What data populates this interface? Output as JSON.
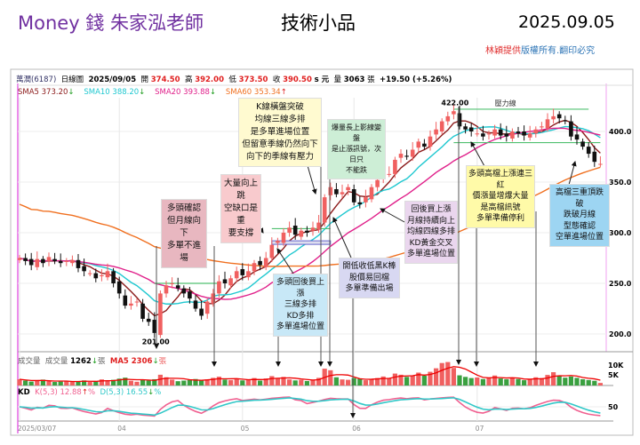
{
  "title": {
    "brand": "Money 錢  朱家泓老師",
    "subject": "技術小品",
    "date": "2025.09.05",
    "copyright_red": "林穎提供",
    "copyright_blue": "版權所有.翻印必究"
  },
  "stock_header": {
    "name": "萬潤(6187)",
    "period": "日線圖",
    "date": "2025/09/05",
    "open_label": "開",
    "open": "374.50",
    "high_label": "高",
    "high": "392.00",
    "low_label": "低",
    "low": "373.50",
    "close_label": "收",
    "close": "390.50",
    "unit": "s 元",
    "vol_label": "量",
    "volume": "3063",
    "vol_unit": "張",
    "change": "+19.50 (+5.26%)"
  },
  "ma_legend": [
    {
      "label": "SMA5 373.20",
      "color": "#8b1a1a",
      "dir": "↓",
      "dircolor": "#1a9a1a"
    },
    {
      "label": "SMA10 388.20",
      "color": "#20c8d0",
      "dir": "↓",
      "dircolor": "#1a9a1a"
    },
    {
      "label": "SMA20 393.88",
      "color": "#e0208a",
      "dir": "↓",
      "dircolor": "#1a9a1a"
    },
    {
      "label": "SMA60 353.34",
      "color": "#f07020",
      "dir": "↑",
      "dircolor": "#e02020"
    }
  ],
  "volume_legend": {
    "name": "成交量",
    "label": "成交量",
    "value": "1262",
    "dir": "↓",
    "unit": "張",
    "ma": "MA5 2306",
    "ma_dir": "↓",
    "ma_unit": "張"
  },
  "kd_legend": {
    "name": "KD",
    "k": "K(5,3) 12.88",
    "k_dir": "↑",
    "d": "D(5,3) 16.55",
    "d_dir": "↓",
    "unit": "%"
  },
  "annotations": [
    {
      "text": "多頭確認\n但月線向下\n多單不進場",
      "bg": "#e8b7c0"
    },
    {
      "text": "大量向上跳\n空缺口是重\n要支撐",
      "bg": "#f8cacd"
    },
    {
      "text": "K線橫盤突破\n均線三線多排\n是多單進場位置\n但留意季線仍然向下\n向下的季線有壓力",
      "bg": "#fffad0"
    },
    {
      "text": "爆量長上影線變盤\n是止漲訊號，次日只\n不能跌",
      "bg": "#cdeed6"
    },
    {
      "text": "多頭回後買上漲\n三線多排\nKD多排\n多單進場位置",
      "bg": "#c8e8f7"
    },
    {
      "text": "開低收低黑K棒\n股價易回檔\n多單準備出場",
      "bg": "#d8d8f2"
    },
    {
      "text": "回後買上漲\n月線持續向上\n均線四線多排\nKD黃金交叉\n多單進場位置",
      "bg": "#ead6ee"
    },
    {
      "text": "多頭高檔上漲連三紅\n價漲量增爆大量\n是高檔訊號\n多單準備停利",
      "bg": "#fffaa8"
    },
    {
      "text": "高檔三重頂跌破\n跌破月線\n型態確認\n空單進場位置",
      "bg": "#9dd5f2"
    }
  ],
  "chart_data": {
    "type": "candlestick",
    "title": "萬潤(6187) 日線圖",
    "x_ticks": [
      {
        "label": "2025/03/07",
        "index": 0
      },
      {
        "label": "04",
        "index": 17
      },
      {
        "label": "05",
        "index": 38
      },
      {
        "label": "06",
        "index": 57
      },
      {
        "label": "07",
        "index": 78
      }
    ],
    "y_ticks": [
      200.0,
      250.0,
      300.0,
      350.0,
      400.0
    ],
    "ylim": [
      180,
      435
    ],
    "closes": [
      275,
      272,
      268,
      274,
      270,
      276,
      272,
      270,
      272,
      273,
      265,
      262,
      260,
      255,
      258,
      262,
      250,
      240,
      228,
      230,
      232,
      215,
      212,
      201,
      240,
      248,
      250,
      245,
      240,
      235,
      225,
      218,
      232,
      240,
      252,
      250,
      255,
      262,
      258,
      262,
      270,
      268,
      275,
      288,
      292,
      300,
      305,
      298,
      302,
      300,
      305,
      310,
      335,
      345,
      338,
      340,
      345,
      330,
      328,
      335,
      345,
      352,
      360,
      358,
      372,
      378,
      375,
      382,
      390,
      385,
      395,
      402,
      410,
      415,
      420,
      405,
      402,
      400,
      398,
      395,
      398,
      402,
      396,
      395,
      400,
      398,
      396,
      398,
      402,
      405,
      412,
      415,
      413,
      410,
      395,
      392,
      385,
      378,
      370,
      368
    ],
    "volumes_k": [
      3.2,
      2.5,
      2.0,
      2.4,
      3.0,
      2.2,
      1.8,
      2.0,
      2.4,
      1.9,
      2.1,
      2.6,
      1.8,
      2.2,
      3.1,
      2.5,
      2.9,
      3.5,
      4.0,
      2.4,
      1.9,
      3.0,
      2.6,
      3.2,
      5.5,
      4.2,
      3.0,
      2.2,
      2.5,
      2.8,
      3.3,
      2.6,
      3.1,
      3.9,
      4.5,
      3.0,
      2.8,
      3.3,
      2.6,
      3.0,
      3.8,
      2.5,
      3.6,
      4.8,
      3.7,
      4.4,
      3.1,
      2.6,
      2.9,
      2.3,
      3.0,
      3.9,
      8.6,
      7.8,
      4.2,
      3.1,
      2.9,
      3.8,
      3.4,
      2.7,
      3.2,
      3.8,
      4.6,
      3.9,
      6.1,
      5.5,
      4.4,
      5.1,
      6.6,
      5.0,
      7.0,
      8.8,
      11.5,
      12.0,
      9.0,
      5.2,
      4.4,
      3.8,
      4.1,
      3.3,
      4.0,
      5.1,
      3.6,
      3.2,
      3.8,
      3.3,
      2.7,
      3.1,
      4.2,
      3.8,
      5.4,
      6.8,
      4.8,
      4.0,
      4.6,
      3.9,
      3.2,
      2.8,
      2.4,
      1.3
    ],
    "volume_ticks": [
      "10K",
      "5K"
    ],
    "kd_ticks": [
      50
    ],
    "annotations_price": [
      {
        "label": "422.00",
        "index": 74
      },
      {
        "label": "201.00",
        "index": 23
      }
    ],
    "lines": [
      {
        "label": "壓力線",
        "price": 422,
        "from": 74,
        "to": 97,
        "color": "#50c070"
      },
      {
        "price": 389,
        "from": 74,
        "to": 99,
        "color": "#50c070"
      },
      {
        "price": 250,
        "from": 23,
        "to": 34,
        "color": "#50c070"
      },
      {
        "price": 304,
        "from": 43,
        "to": 53,
        "color": "#50c070"
      }
    ],
    "series": [
      {
        "name": "SMA5",
        "period": 5,
        "color": "#8b1a1a"
      },
      {
        "name": "SMA10",
        "period": 10,
        "color": "#20c8d0"
      },
      {
        "name": "SMA20",
        "period": 20,
        "color": "#e0208a"
      },
      {
        "name": "SMA60",
        "period": 60,
        "color": "#f07020"
      }
    ],
    "colors": {
      "up": "#f06060",
      "down": "#111111",
      "vol_up": "#f06060",
      "vol_down": "#3aa040",
      "k": "#f06090",
      "d": "#30c8c8"
    }
  }
}
